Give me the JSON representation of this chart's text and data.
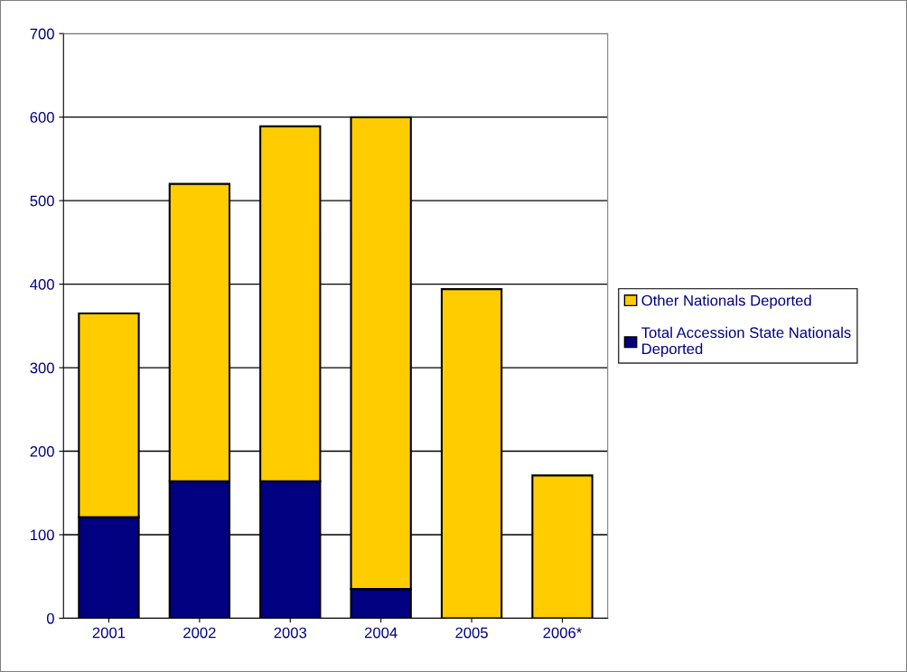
{
  "chart_data": {
    "type": "bar",
    "stacked": true,
    "categories": [
      "2001",
      "2002",
      "2003",
      "2004",
      "2005",
      "2006*"
    ],
    "series": [
      {
        "name": "Total Accession State Nationals Deported",
        "color": "#000080",
        "values": [
          121,
          164,
          164,
          35,
          0,
          0
        ]
      },
      {
        "name": "Other Nationals Deported",
        "color": "#ffcc00",
        "values": [
          244,
          356,
          425,
          565,
          394,
          171
        ]
      }
    ],
    "ylim": [
      0,
      700
    ],
    "yticks": [
      0,
      100,
      200,
      300,
      400,
      500,
      600,
      700
    ],
    "grid": "y",
    "legend": "right"
  }
}
